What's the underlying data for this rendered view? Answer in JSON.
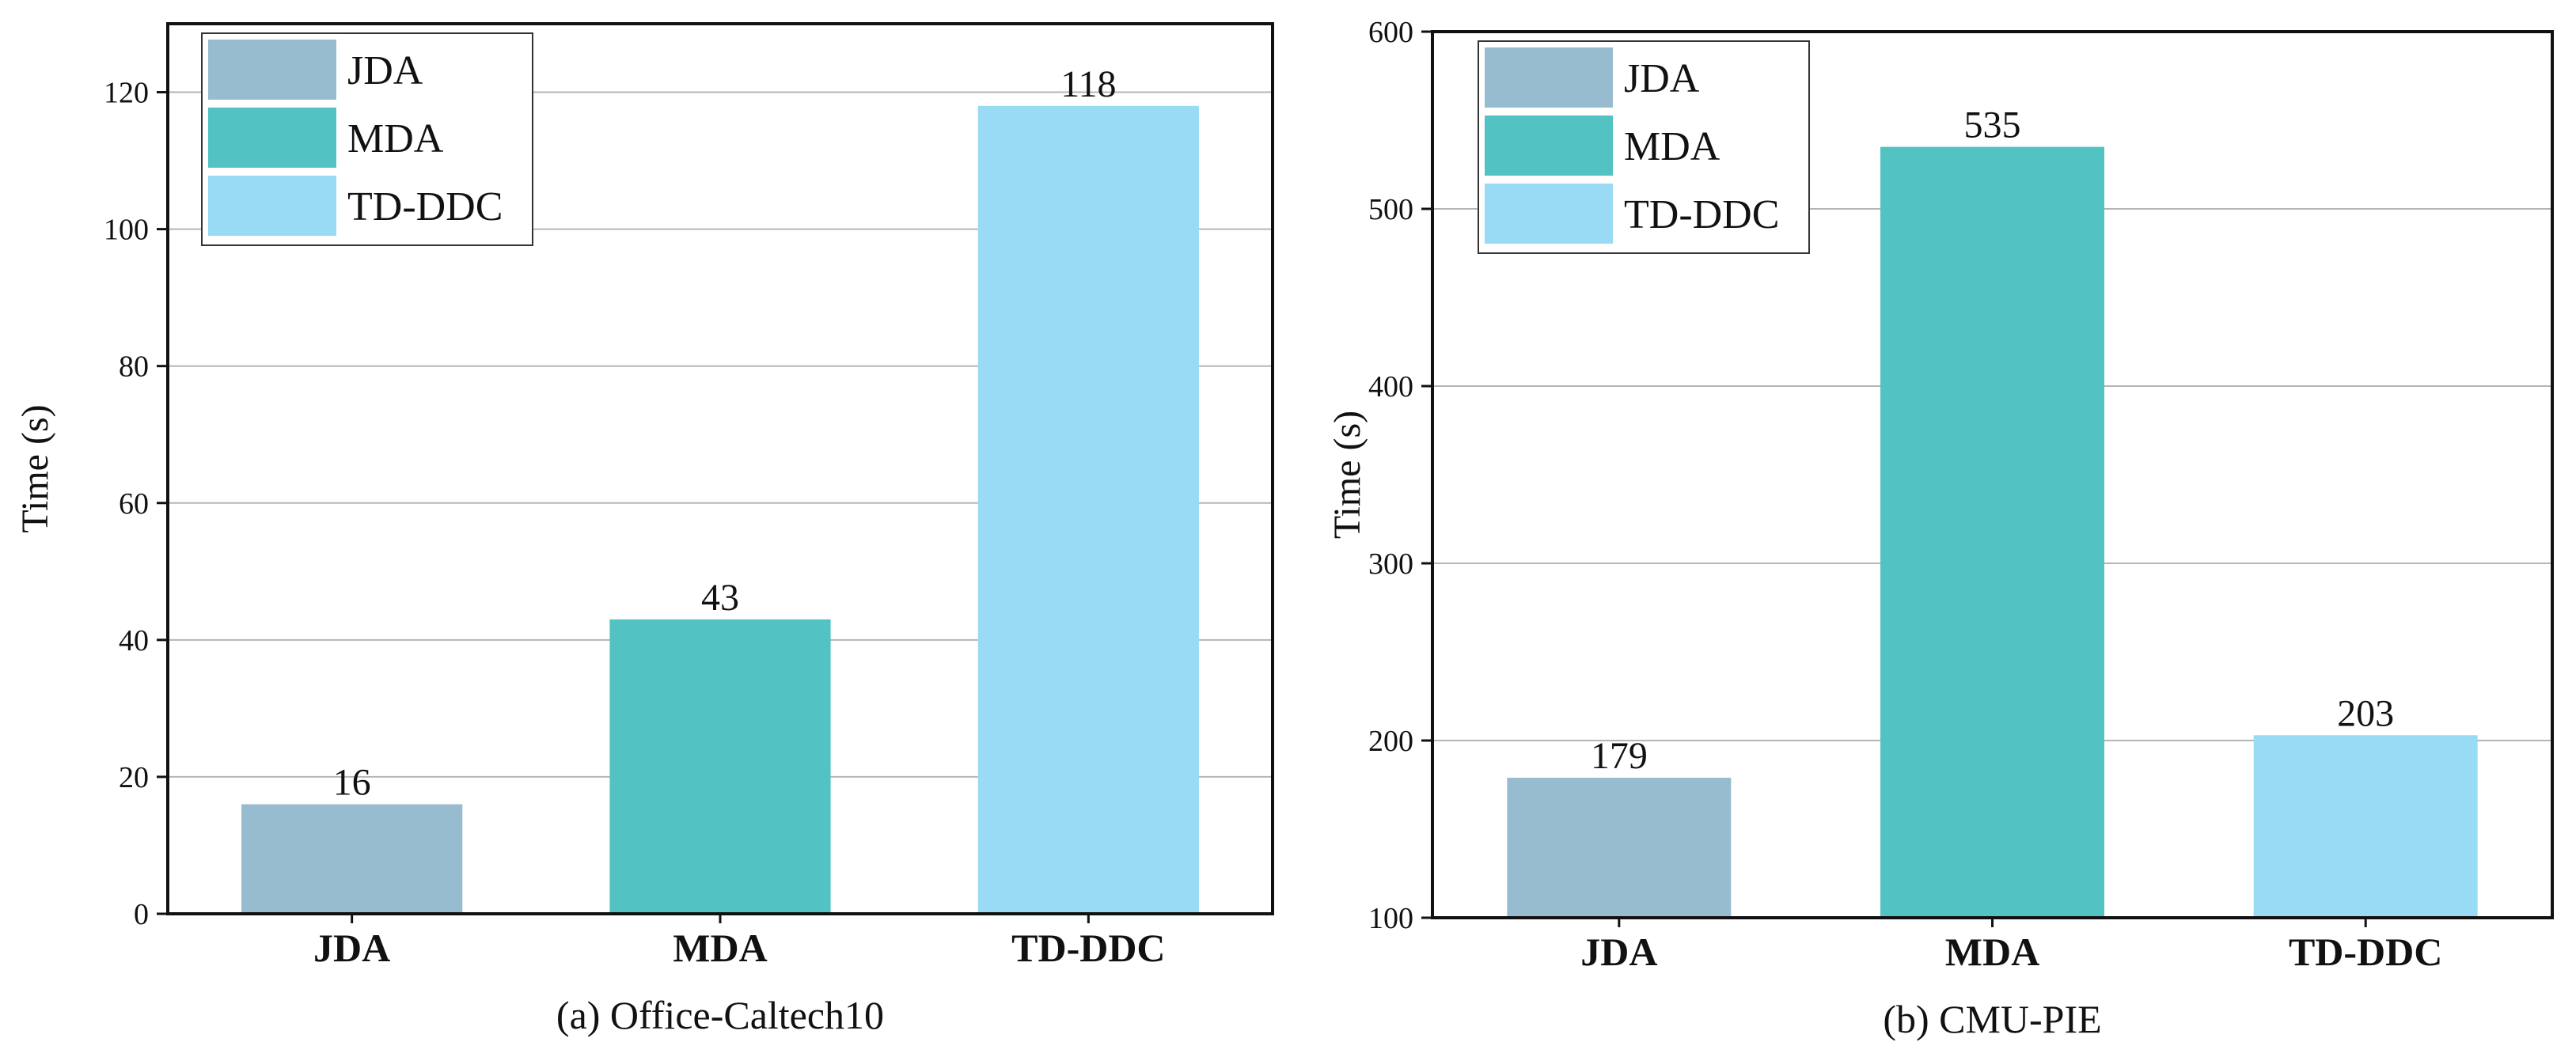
{
  "chart_data": [
    {
      "type": "bar",
      "caption": "(a) Office-Caltech10",
      "ylabel": "Time (s)",
      "xlabel": "",
      "categories": [
        "JDA",
        "MDA",
        "TD-DDC"
      ],
      "values": [
        16,
        43,
        118
      ],
      "data_labels": [
        "16",
        "43",
        "118"
      ],
      "ylim": [
        0,
        130
      ],
      "yticks": [
        0,
        20,
        40,
        60,
        80,
        100,
        120
      ],
      "ytick_labels": [
        "0",
        "20",
        "40",
        "60",
        "80",
        "100",
        "120"
      ],
      "grid": true,
      "legend": {
        "position": "top-left",
        "entries": [
          {
            "label": "JDA",
            "color": "#98bccf"
          },
          {
            "label": "MDA",
            "color": "#52c3c2"
          },
          {
            "label": "TD-DDC",
            "color": "#99dbf4"
          }
        ]
      },
      "bar_colors": [
        "#98bccf",
        "#52c3c2",
        "#99dbf4"
      ]
    },
    {
      "type": "bar",
      "caption": "(b) CMU-PIE",
      "ylabel": "Time (s)",
      "xlabel": "",
      "categories": [
        "JDA",
        "MDA",
        "TD-DDC"
      ],
      "values": [
        179,
        535,
        203
      ],
      "data_labels": [
        "179",
        "535",
        "203"
      ],
      "ylim": [
        100,
        600
      ],
      "yticks": [
        100,
        200,
        300,
        400,
        500,
        600
      ],
      "ytick_labels": [
        "100",
        "200",
        "300",
        "400",
        "500",
        "600"
      ],
      "grid": true,
      "legend": {
        "position": "top-left",
        "entries": [
          {
            "label": "JDA",
            "color": "#98bccf"
          },
          {
            "label": "MDA",
            "color": "#52c3c2"
          },
          {
            "label": "TD-DDC",
            "color": "#99dbf4"
          }
        ]
      },
      "bar_colors": [
        "#98bccf",
        "#52c3c2",
        "#99dbf4"
      ]
    }
  ]
}
